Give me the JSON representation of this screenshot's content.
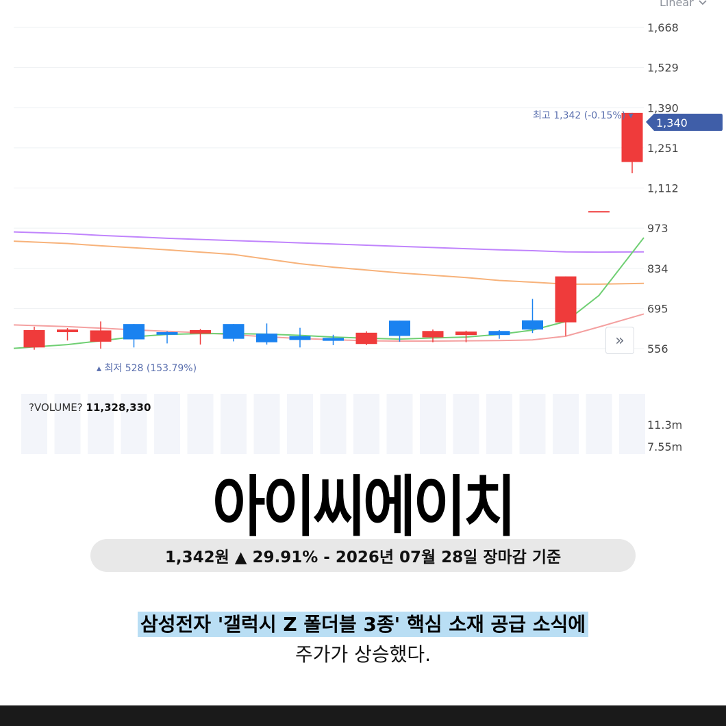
{
  "chart_data": {
    "type": "candlestick",
    "scale_mode": "Linear",
    "y_ticks": [
      "1,668",
      "1,529",
      "1,390",
      "1,251",
      "1,112",
      "973",
      "834",
      "695",
      "556"
    ],
    "y_tick_values": [
      1668,
      1529,
      1390,
      1251,
      1112,
      973,
      834,
      695,
      556
    ],
    "ylim": [
      520,
      1700
    ],
    "candles": [
      {
        "open": 620,
        "close": 560,
        "high": 632,
        "low": 552,
        "dir": "up"
      },
      {
        "open": 622,
        "close": 613,
        "high": 627,
        "low": 584,
        "dir": "up"
      },
      {
        "open": 619,
        "close": 580,
        "high": 650,
        "low": 556,
        "dir": "up"
      },
      {
        "open": 588,
        "close": 641,
        "high": 641,
        "low": 560,
        "dir": "down"
      },
      {
        "open": 613,
        "close": 604,
        "high": 616,
        "low": 574,
        "dir": "down"
      },
      {
        "open": 620,
        "close": 608,
        "high": 624,
        "low": 570,
        "dir": "up"
      },
      {
        "open": 590,
        "close": 641,
        "high": 641,
        "low": 581,
        "dir": "down"
      },
      {
        "open": 578,
        "close": 608,
        "high": 643,
        "low": 570,
        "dir": "down"
      },
      {
        "open": 586,
        "close": 599,
        "high": 628,
        "low": 560,
        "dir": "down"
      },
      {
        "open": 583,
        "close": 593,
        "high": 604,
        "low": 568,
        "dir": "down"
      },
      {
        "open": 611,
        "close": 572,
        "high": 616,
        "low": 568,
        "dir": "up"
      },
      {
        "open": 600,
        "close": 653,
        "high": 653,
        "low": 580,
        "dir": "down"
      },
      {
        "open": 617,
        "close": 595,
        "high": 622,
        "low": 578,
        "dir": "up"
      },
      {
        "open": 615,
        "close": 603,
        "high": 618,
        "low": 578,
        "dir": "up"
      },
      {
        "open": 603,
        "close": 617,
        "high": 620,
        "low": 590,
        "dir": "down"
      },
      {
        "open": 622,
        "close": 654,
        "high": 728,
        "low": 610,
        "dir": "down"
      },
      {
        "open": 647,
        "close": 806,
        "high": 806,
        "low": 600,
        "dir": "up"
      },
      {
        "open": 1032,
        "close": 1032,
        "high": 1032,
        "low": 1032,
        "dir": "up"
      },
      {
        "open": 1202,
        "close": 1372,
        "high": 1372,
        "low": 1163,
        "dir": "up"
      }
    ],
    "ma_lines": [
      {
        "color": "#c084fc",
        "values": [
          960,
          954,
          948,
          943,
          938,
          934,
          930,
          926,
          922,
          918,
          914,
          910,
          906,
          902,
          898,
          895,
          891,
          890,
          891
        ]
      },
      {
        "color": "#f7b27a",
        "values": [
          928,
          920,
          912,
          905,
          898,
          890,
          882,
          866,
          850,
          838,
          828,
          818,
          810,
          802,
          792,
          786,
          779,
          779,
          782
        ]
      },
      {
        "color": "#f4a0a0",
        "values": [
          638,
          632,
          627,
          621,
          616,
          611,
          604,
          597,
          591,
          587,
          583,
          582,
          582,
          583,
          584,
          586,
          599,
          631,
          676
        ]
      },
      {
        "color": "#6fcf73",
        "values": [
          557,
          570,
          583,
          597,
          605,
          608,
          608,
          606,
          602,
          596,
          592,
          589,
          593,
          596,
          605,
          620,
          650,
          740,
          940
        ]
      }
    ],
    "high_label": "최고",
    "high_value": "1,342 (-0.15%)",
    "low_label": "최저",
    "low_value": "528 (153.79%)",
    "current_price": "1,340",
    "volume_label": "?VOLUME?",
    "volume_value": "11,328,330",
    "volume_ticks": [
      "11.3m",
      "7.55m"
    ],
    "colors": {
      "up": "#ef3b3b",
      "down": "#1a82f0",
      "price_tag": "#3f5ea8",
      "annotation": "#5a6fae"
    }
  },
  "title": "아이씨에이치",
  "price_summary": "1,342원 ▲ 29.91% -  2026년 07월 28일 장마감 기준",
  "caption_line1": "삼성전자 '갤럭시 Z 폴더블 3종' 핵심 소재 공급 소식에",
  "caption_line2": "주가가 상승했다.",
  "icons": {
    "scale_dropdown": "chevron-down-icon",
    "scroll_right": "double-chevron-right-icon",
    "high_marker": "down-triangle-icon",
    "low_marker": "up-triangle-icon"
  }
}
